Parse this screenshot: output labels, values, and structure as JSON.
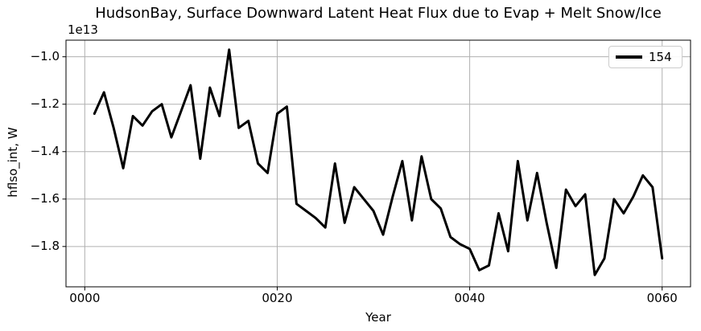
{
  "colors": {
    "background": "#ffffff",
    "line": "#000000",
    "grid": "#b0b0b0",
    "spine": "#000000",
    "legend_edge": "#cccccc",
    "text": "#000000"
  },
  "legend": {
    "position": "upper right",
    "entries": [
      {
        "label": "154",
        "color": "#000000"
      }
    ]
  },
  "chart_data": {
    "type": "line",
    "title": "HudsonBay, Surface Downward Latent Heat Flux due to Evap + Melt Snow/Ice",
    "xlabel": "Year",
    "ylabel": "hflso_int, W",
    "y_offset_text": "1e13",
    "y_units": "W, values in units of 1e13",
    "xlim": [
      -1.95,
      62.95
    ],
    "ylim": [
      -1.97,
      -0.93
    ],
    "grid": true,
    "legend_position": "upper right",
    "xticks": {
      "values": [
        0,
        20,
        40,
        60
      ],
      "labels": [
        "0000",
        "0020",
        "0040",
        "0060"
      ]
    },
    "yticks": {
      "values": [
        -1.0,
        -1.2,
        -1.4,
        -1.6,
        -1.8
      ],
      "labels": [
        "−1.0",
        "−1.2",
        "−1.4",
        "−1.6",
        "−1.8"
      ]
    },
    "series": [
      {
        "name": "154",
        "color": "#000000",
        "linewidth": 3,
        "x": [
          1,
          2,
          3,
          4,
          5,
          6,
          7,
          8,
          9,
          10,
          11,
          12,
          13,
          14,
          15,
          16,
          17,
          18,
          19,
          20,
          21,
          22,
          23,
          24,
          25,
          26,
          27,
          28,
          29,
          30,
          31,
          32,
          33,
          34,
          35,
          36,
          37,
          38,
          39,
          40,
          41,
          42,
          43,
          44,
          45,
          46,
          47,
          48,
          49,
          50,
          51,
          52,
          53,
          54,
          55,
          56,
          57,
          58,
          59,
          60
        ],
        "y": [
          -1.24,
          -1.15,
          -1.3,
          -1.47,
          -1.25,
          -1.29,
          -1.23,
          -1.2,
          -1.34,
          -1.23,
          -1.12,
          -1.43,
          -1.13,
          -1.25,
          -0.97,
          -1.3,
          -1.27,
          -1.45,
          -1.49,
          -1.24,
          -1.21,
          -1.62,
          -1.65,
          -1.68,
          -1.72,
          -1.45,
          -1.7,
          -1.55,
          -1.6,
          -1.65,
          -1.75,
          -1.59,
          -1.44,
          -1.69,
          -1.42,
          -1.6,
          -1.64,
          -1.76,
          -1.79,
          -1.81,
          -1.9,
          -1.88,
          -1.66,
          -1.82,
          -1.44,
          -1.69,
          -1.49,
          -1.7,
          -1.89,
          -1.56,
          -1.63,
          -1.58,
          -1.92,
          -1.85,
          -1.6,
          -1.66,
          -1.59,
          -1.5,
          -1.55,
          -1.85
        ]
      }
    ]
  }
}
